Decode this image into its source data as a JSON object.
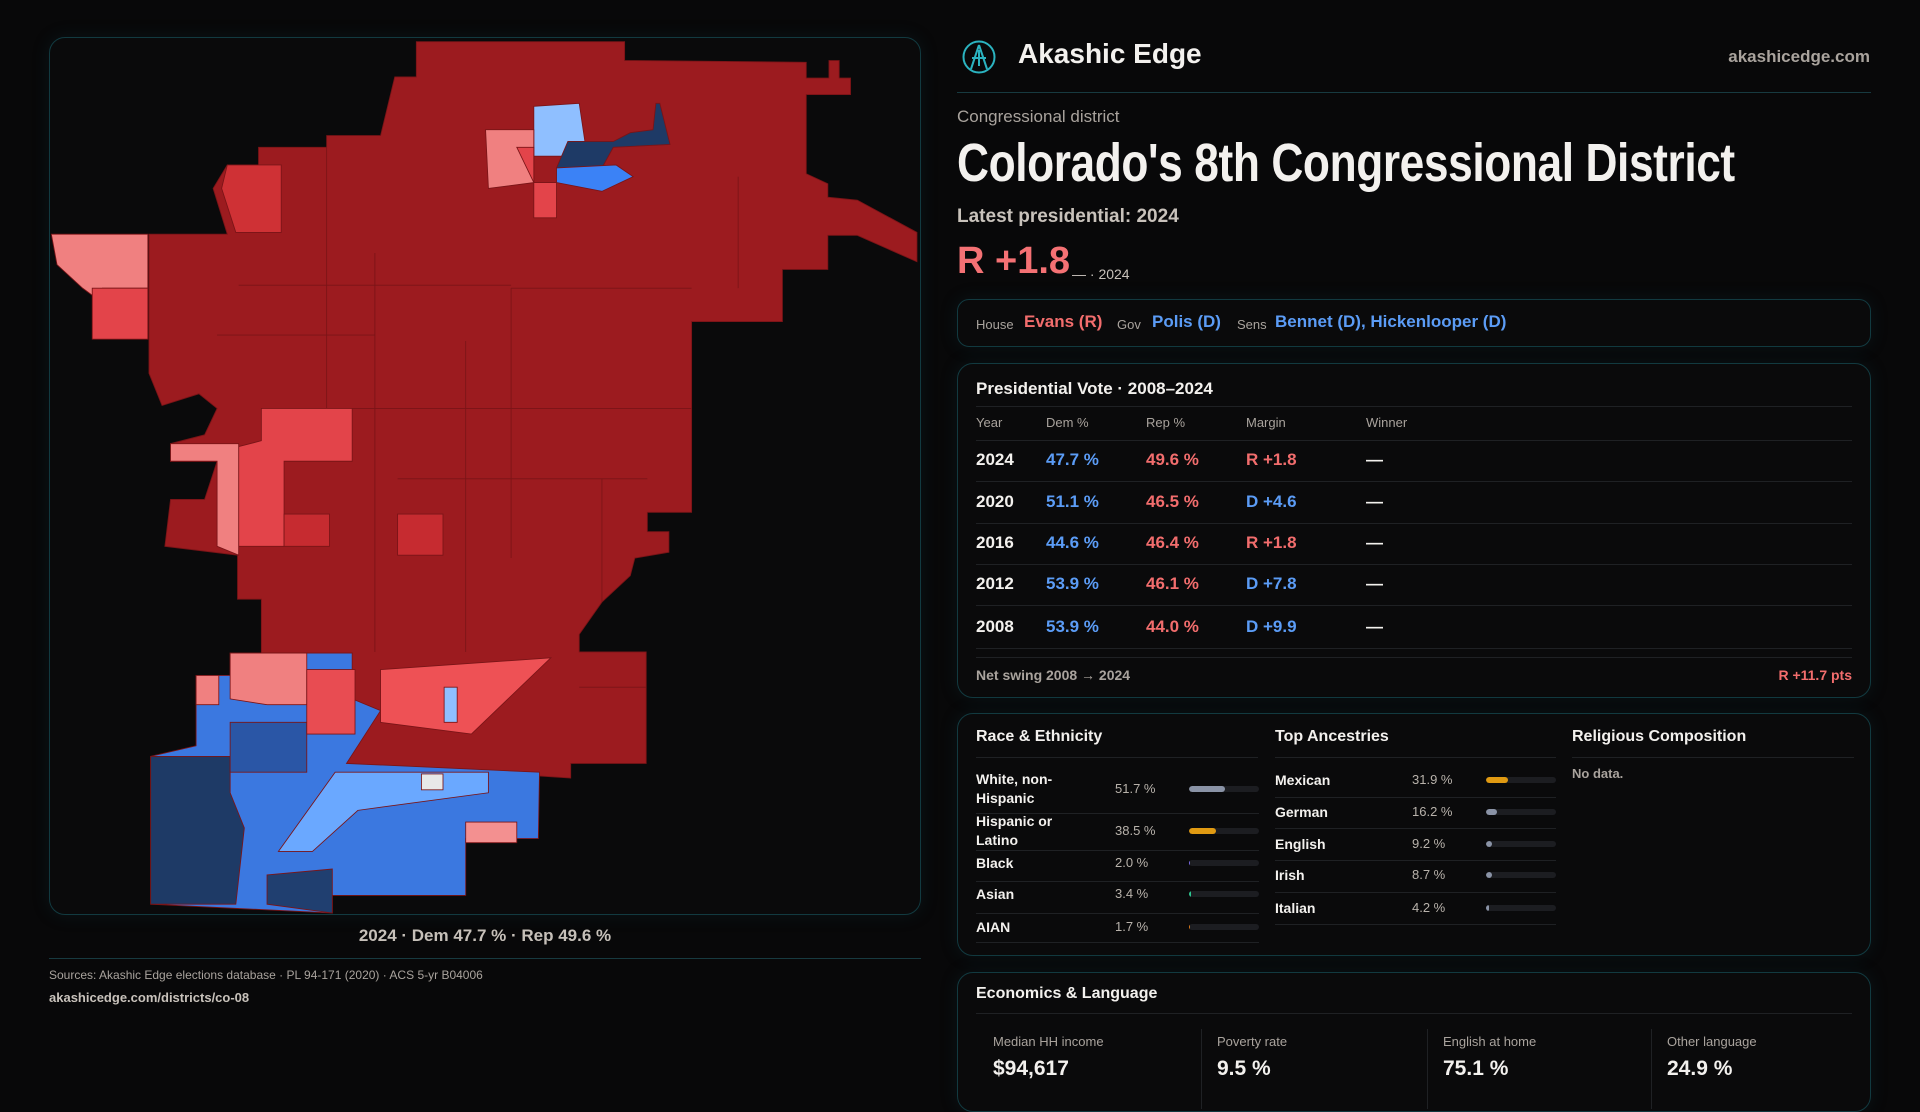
{
  "brand": {
    "name": "Akashic Edge",
    "site": "akashicedge.com"
  },
  "header": {
    "kind": "Congressional district",
    "title": "Colorado's 8th Congressional District",
    "latest_label": "Latest presidential: 2024",
    "margin": "R +1.8",
    "margin_note": "— · 2024"
  },
  "officials": {
    "house_label": "House",
    "house": "Evans (R)",
    "gov_label": "Gov",
    "gov": "Polis (D)",
    "sens_label": "Sens",
    "sens": "Bennet (D), Hickenlooper (D)"
  },
  "map": {
    "caption": "2024 · Dem 47.7 % · Rep 49.6 %"
  },
  "presidential": {
    "title": "Presidential Vote · 2008–2024",
    "headers": [
      "Year",
      "Dem %",
      "Rep %",
      "Margin",
      "Winner"
    ],
    "rows": [
      {
        "year": "2024",
        "dem": "47.7 %",
        "rep": "49.6 %",
        "margin": "R +1.8",
        "party": "R",
        "winner": "—"
      },
      {
        "year": "2020",
        "dem": "51.1 %",
        "rep": "46.5 %",
        "margin": "D +4.6",
        "party": "D",
        "winner": "—"
      },
      {
        "year": "2016",
        "dem": "44.6 %",
        "rep": "46.4 %",
        "margin": "R +1.8",
        "party": "R",
        "winner": "—"
      },
      {
        "year": "2012",
        "dem": "53.9 %",
        "rep": "46.1 %",
        "margin": "D +7.8",
        "party": "D",
        "winner": "—"
      },
      {
        "year": "2008",
        "dem": "53.9 %",
        "rep": "44.0 %",
        "margin": "D +9.9",
        "party": "D",
        "winner": "—"
      }
    ],
    "swing_label": "Net swing 2008 → 2024",
    "swing_value": "R +11.7 pts"
  },
  "race": {
    "title": "Race & Ethnicity",
    "items": [
      {
        "label": "White, non-Hispanic",
        "value": "51.7 %",
        "pct": 51.7,
        "color": "#8a93a6"
      },
      {
        "label": "Hispanic or Latino",
        "value": "38.5 %",
        "pct": 38.5,
        "color": "#e09a12"
      },
      {
        "label": "Black",
        "value": "2.0 %",
        "pct": 2.0,
        "color": "#7a6ae6"
      },
      {
        "label": "Asian",
        "value": "3.4 %",
        "pct": 3.4,
        "color": "#2cc58f"
      },
      {
        "label": "AIAN",
        "value": "1.7 %",
        "pct": 1.7,
        "color": "#d9781a"
      }
    ]
  },
  "ancestries": {
    "title": "Top Ancestries",
    "items": [
      {
        "label": "Mexican",
        "value": "31.9 %",
        "pct": 31.9,
        "color": "#e09a12"
      },
      {
        "label": "German",
        "value": "16.2 %",
        "pct": 16.2,
        "color": "#8a93a6"
      },
      {
        "label": "English",
        "value": "9.2 %",
        "pct": 9.2,
        "color": "#8a93a6"
      },
      {
        "label": "Irish",
        "value": "8.7 %",
        "pct": 8.7,
        "color": "#8a93a6"
      },
      {
        "label": "Italian",
        "value": "4.2 %",
        "pct": 4.2,
        "color": "#8a93a6"
      }
    ]
  },
  "religion": {
    "title": "Religious Composition",
    "empty": "No data."
  },
  "economics": {
    "title": "Economics & Language",
    "metrics": [
      {
        "label": "Median HH income",
        "value": "$94,617"
      },
      {
        "label": "Poverty rate",
        "value": "9.5 %"
      },
      {
        "label": "English at home",
        "value": "75.1 %"
      },
      {
        "label": "Other language",
        "value": "24.9 %"
      }
    ]
  },
  "footer": {
    "sources": "Sources: Akashic Edge elections database · PL 94-171 (2020) · ACS 5-yr B04006",
    "url": "akashicedge.com/districts/co-08"
  },
  "colors": {
    "dem": "#5b9cf6",
    "rep": "#f26d6d",
    "accent": "#2bb3c0"
  }
}
